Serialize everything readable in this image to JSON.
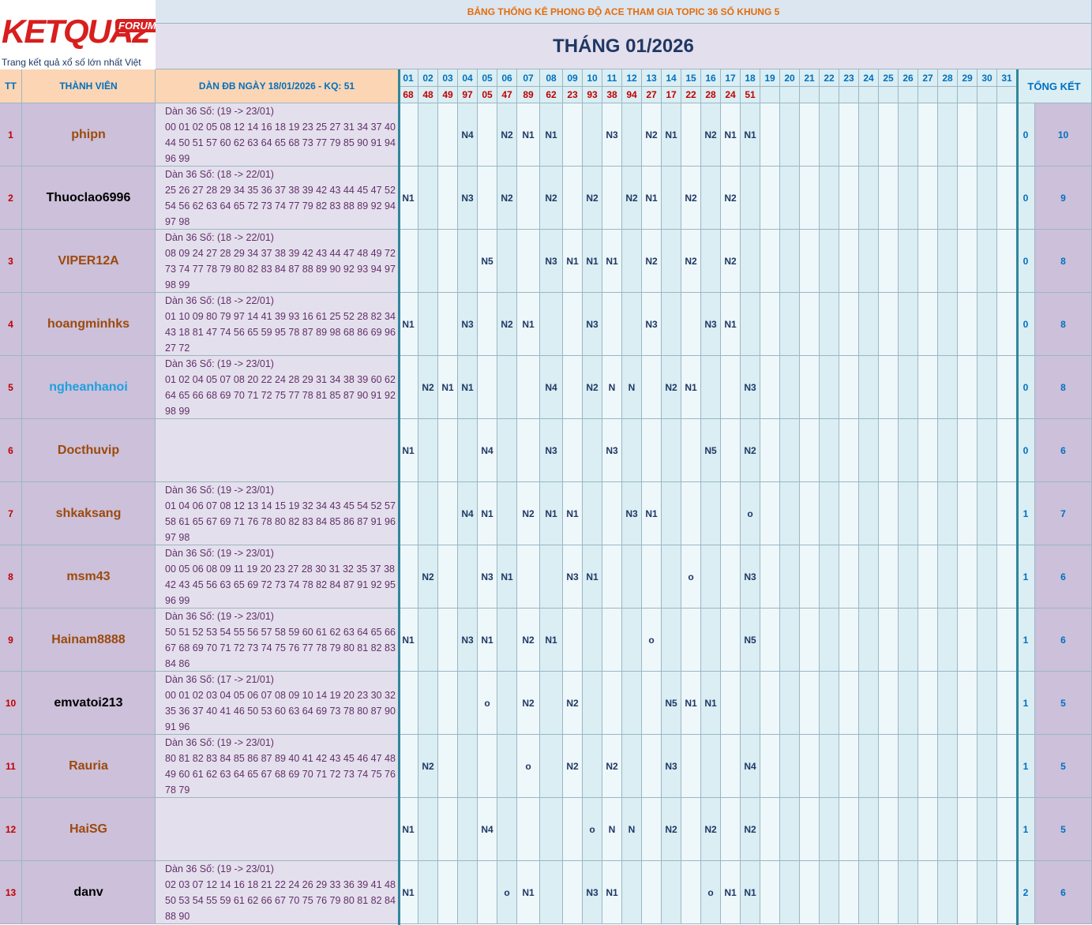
{
  "header": {
    "logo": {
      "brand": "KETQUA2",
      "badge": "FORUM",
      "tagline": "Trang kết quả xổ số lớn nhất Việt Nam"
    },
    "subtitle": "BẢNG THỐNG KÊ PHONG ĐỘ ACE THAM GIA TOPIC 36 SỐ KHUNG 5",
    "title": "THÁNG 01/2026"
  },
  "table": {
    "columns": {
      "index": "TT",
      "member": "THÀNH VIÊN",
      "set": "DÀN ĐB NGÀY 18/01/2026 - KQ: 51",
      "summary": "TỔNG KẾT"
    },
    "days": [
      "01",
      "02",
      "03",
      "04",
      "05",
      "06",
      "07",
      "08",
      "09",
      "10",
      "11",
      "12",
      "13",
      "14",
      "15",
      "16",
      "17",
      "18",
      "19",
      "20",
      "21",
      "22",
      "23",
      "24",
      "25",
      "26",
      "27",
      "28",
      "29",
      "30",
      "31"
    ],
    "results": [
      "68",
      "48",
      "49",
      "97",
      "05",
      "47",
      "89",
      "62",
      "23",
      "93",
      "38",
      "94",
      "27",
      "17",
      "22",
      "28",
      "24",
      "51"
    ],
    "rows": [
      {
        "index": 1,
        "name": "phipn",
        "name_color": "#9c4a0c",
        "set": [
          "Dàn 36 Số: (19 -> 23/01)",
          "00 01 02 05 08 12 14 16 18 19 23 25 27 31 34 37 40",
          "44 50 51 57 60 62 63 64 65 68 73 77 79 85 90 91 94",
          "96 99"
        ],
        "cells": [
          null,
          null,
          null,
          "N4",
          null,
          "N2",
          "N1",
          "N1",
          null,
          null,
          "N3",
          null,
          "N2",
          "N1",
          null,
          "N2",
          "N1",
          "N1",
          null,
          null,
          null,
          null,
          null,
          null,
          null,
          null,
          null,
          null,
          null,
          null,
          null
        ],
        "score": 0,
        "total": 10
      },
      {
        "index": 2,
        "name": "Thuoclao6996",
        "name_color": "#000000",
        "set": [
          "Dàn 36 Số: (18 -> 22/01)",
          "25 26 27 28 29 34 35 36 37 38 39 42 43 44 45 47 52",
          "54 56 62 63 64 65 72 73 74 77 79 82 83 88 89 92 94",
          "97 98"
        ],
        "cells": [
          "N1",
          null,
          null,
          "N3",
          null,
          "N2",
          null,
          "N2",
          null,
          "N2",
          null,
          "N2",
          "N1",
          null,
          "N2",
          null,
          "N2",
          null,
          null,
          null,
          null,
          null,
          null,
          null,
          null,
          null,
          null,
          null,
          null,
          null,
          null
        ],
        "score": 0,
        "total": 9
      },
      {
        "index": 3,
        "name": "VIPER12A",
        "name_color": "#9c4a0c",
        "set": [
          "Dàn 36 Số: (18 -> 22/01)",
          "08 09 24 27 28 29 34 37 38 39 42 43 44 47 48 49 72",
          "73 74 77 78 79 80 82 83 84 87 88 89 90 92 93 94 97",
          "98 99"
        ],
        "cells": [
          null,
          null,
          null,
          null,
          "N5",
          null,
          null,
          "N3",
          "N1",
          "N1",
          "N1",
          null,
          "N2",
          null,
          "N2",
          null,
          "N2",
          null,
          null,
          null,
          null,
          null,
          null,
          null,
          null,
          null,
          null,
          null,
          null,
          null,
          null
        ],
        "score": 0,
        "total": 8
      },
      {
        "index": 4,
        "name": "hoangminhks",
        "name_color": "#9c4a0c",
        "set": [
          "Dàn 36 Số: (18 -> 22/01)",
          "01 10 09 80 79 97 14 41 39 93 16 61 25 52 28 82 34",
          "43 18 81 47 74 56 65 59 95 78 87 89 98 68 86 69 96",
          "27 72"
        ],
        "cells": [
          "N1",
          null,
          null,
          "N3",
          null,
          "N2",
          "N1",
          null,
          null,
          "N3",
          null,
          null,
          "N3",
          null,
          null,
          "N3",
          "N1",
          null,
          null,
          null,
          null,
          null,
          null,
          null,
          null,
          null,
          null,
          null,
          null,
          null,
          null
        ],
        "score": 0,
        "total": 8
      },
      {
        "index": 5,
        "name": "ngheanhanoi",
        "name_color": "#1ea0e0",
        "set": [
          "Dàn 36 Số: (19 -> 23/01)",
          "01 02 04 05 07 08 20 22 24 28 29 31 34 38 39 60 62",
          "64 65 66 68 69 70 71 72 75 77 78 81 85 87 90 91 92",
          "98 99"
        ],
        "cells": [
          null,
          "N2",
          "N1",
          "N1",
          null,
          null,
          null,
          "N4",
          null,
          "N2",
          "N",
          "N",
          null,
          "N2",
          "N1",
          null,
          null,
          "N3",
          null,
          null,
          null,
          null,
          null,
          null,
          null,
          null,
          null,
          null,
          null,
          null,
          null
        ],
        "score": 0,
        "total": 8
      },
      {
        "index": 6,
        "name": "Docthuvip",
        "name_color": "#9c4a0c",
        "set": [],
        "cells": [
          "N1",
          null,
          null,
          null,
          "N4",
          null,
          null,
          "N3",
          null,
          null,
          "N3",
          null,
          null,
          null,
          null,
          "N5",
          null,
          "N2",
          null,
          null,
          null,
          null,
          null,
          null,
          null,
          null,
          null,
          null,
          null,
          null,
          null
        ],
        "score": 0,
        "total": 6
      },
      {
        "index": 7,
        "name": "shkaksang",
        "name_color": "#9c4a0c",
        "set": [
          "Dàn 36 Số: (19 -> 23/01)",
          "01 04 06 07 08 12 13 14 15 19 32 34 43 45 54 52 57",
          "58 61 65 67 69 71 76 78 80 82 83 84 85 86 87 91 96",
          "97 98"
        ],
        "cells": [
          null,
          null,
          null,
          "N4",
          "N1",
          null,
          "N2",
          "N1",
          "N1",
          null,
          null,
          "N3",
          "N1",
          null,
          null,
          null,
          null,
          "o",
          null,
          null,
          null,
          null,
          null,
          null,
          null,
          null,
          null,
          null,
          null,
          null,
          null
        ],
        "score": 1,
        "total": 7
      },
      {
        "index": 8,
        "name": "msm43",
        "name_color": "#9c4a0c",
        "set": [
          "Dàn 36 Số: (19 -> 23/01)",
          "00 05 06 08 09 11 19 20 23 27 28 30 31 32 35 37 38",
          "42 43 45 56 63 65 69 72 73 74 78 82 84 87 91 92 95",
          "96 99"
        ],
        "cells": [
          null,
          "N2",
          null,
          null,
          "N3",
          "N1",
          null,
          null,
          "N3",
          "N1",
          null,
          null,
          null,
          null,
          "o",
          null,
          null,
          "N3",
          null,
          null,
          null,
          null,
          null,
          null,
          null,
          null,
          null,
          null,
          null,
          null,
          null
        ],
        "score": 1,
        "total": 6
      },
      {
        "index": 9,
        "name": "Hainam8888",
        "name_color": "#9c4a0c",
        "set": [
          "Dàn 36 Số: (19 -> 23/01)",
          "50 51 52 53 54 55 56 57 58 59 60 61 62 63 64 65 66",
          "67 68 69 70 71 72 73 74 75 76 77 78 79 80 81 82 83",
          "84 86"
        ],
        "cells": [
          "N1",
          null,
          null,
          "N3",
          "N1",
          null,
          "N2",
          "N1",
          null,
          null,
          null,
          null,
          "o",
          null,
          null,
          null,
          null,
          "N5",
          null,
          null,
          null,
          null,
          null,
          null,
          null,
          null,
          null,
          null,
          null,
          null,
          null
        ],
        "score": 1,
        "total": 6
      },
      {
        "index": 10,
        "name": "emvatoi213",
        "name_color": "#000000",
        "set": [
          "Dàn 36 Số: (17 -> 21/01)",
          "00 01 02 03 04 05 06 07 08 09 10 14 19 20 23 30 32",
          "35 36 37 40 41 46 50 53 60 63 64 69 73 78 80 87 90",
          "91 96"
        ],
        "cells": [
          null,
          null,
          null,
          null,
          "o",
          null,
          "N2",
          null,
          "N2",
          null,
          null,
          null,
          null,
          "N5",
          "N1",
          "N1",
          null,
          null,
          null,
          null,
          null,
          null,
          null,
          null,
          null,
          null,
          null,
          null,
          null,
          null,
          null
        ],
        "score": 1,
        "total": 5
      },
      {
        "index": 11,
        "name": "Rauria",
        "name_color": "#9c4a0c",
        "set": [
          "Dàn 36 Số: (19 -> 23/01)",
          "80 81 82 83 84 85 86 87 89 40 41 42 43 45 46 47 48",
          "49 60 61 62 63 64 65 67 68 69 70 71 72 73 74 75 76",
          "78 79"
        ],
        "cells": [
          null,
          "N2",
          null,
          null,
          null,
          null,
          "o",
          null,
          "N2",
          null,
          "N2",
          null,
          null,
          "N3",
          null,
          null,
          null,
          "N4",
          null,
          null,
          null,
          null,
          null,
          null,
          null,
          null,
          null,
          null,
          null,
          null,
          null
        ],
        "score": 1,
        "total": 5
      },
      {
        "index": 12,
        "name": "HaiSG",
        "name_color": "#9c4a0c",
        "set": [],
        "cells": [
          "N1",
          null,
          null,
          null,
          "N4",
          null,
          null,
          null,
          null,
          "o",
          "N",
          "N",
          null,
          "N2",
          null,
          "N2",
          null,
          "N2",
          null,
          null,
          null,
          null,
          null,
          null,
          null,
          null,
          null,
          null,
          null,
          null,
          null
        ],
        "score": 1,
        "total": 5
      },
      {
        "index": 13,
        "name": "danv",
        "name_color": "#000000",
        "set": [
          "Dàn 36 Số: (19 -> 23/01)",
          "02 03 07 12 14 16 18 21 22 24 26 29 33 36 39 41 48",
          "50 53 54 55 59 61 62 66 67 70 75 76 79 80 81 82 84",
          "88 90"
        ],
        "cells": [
          "N1",
          null,
          null,
          null,
          null,
          "o",
          "N1",
          null,
          null,
          "N3",
          "N1",
          null,
          null,
          null,
          null,
          "o",
          "N1",
          "N1",
          null,
          null,
          null,
          null,
          null,
          null,
          null,
          null,
          null,
          null,
          null,
          null,
          null
        ],
        "score": 2,
        "total": 6
      }
    ]
  }
}
